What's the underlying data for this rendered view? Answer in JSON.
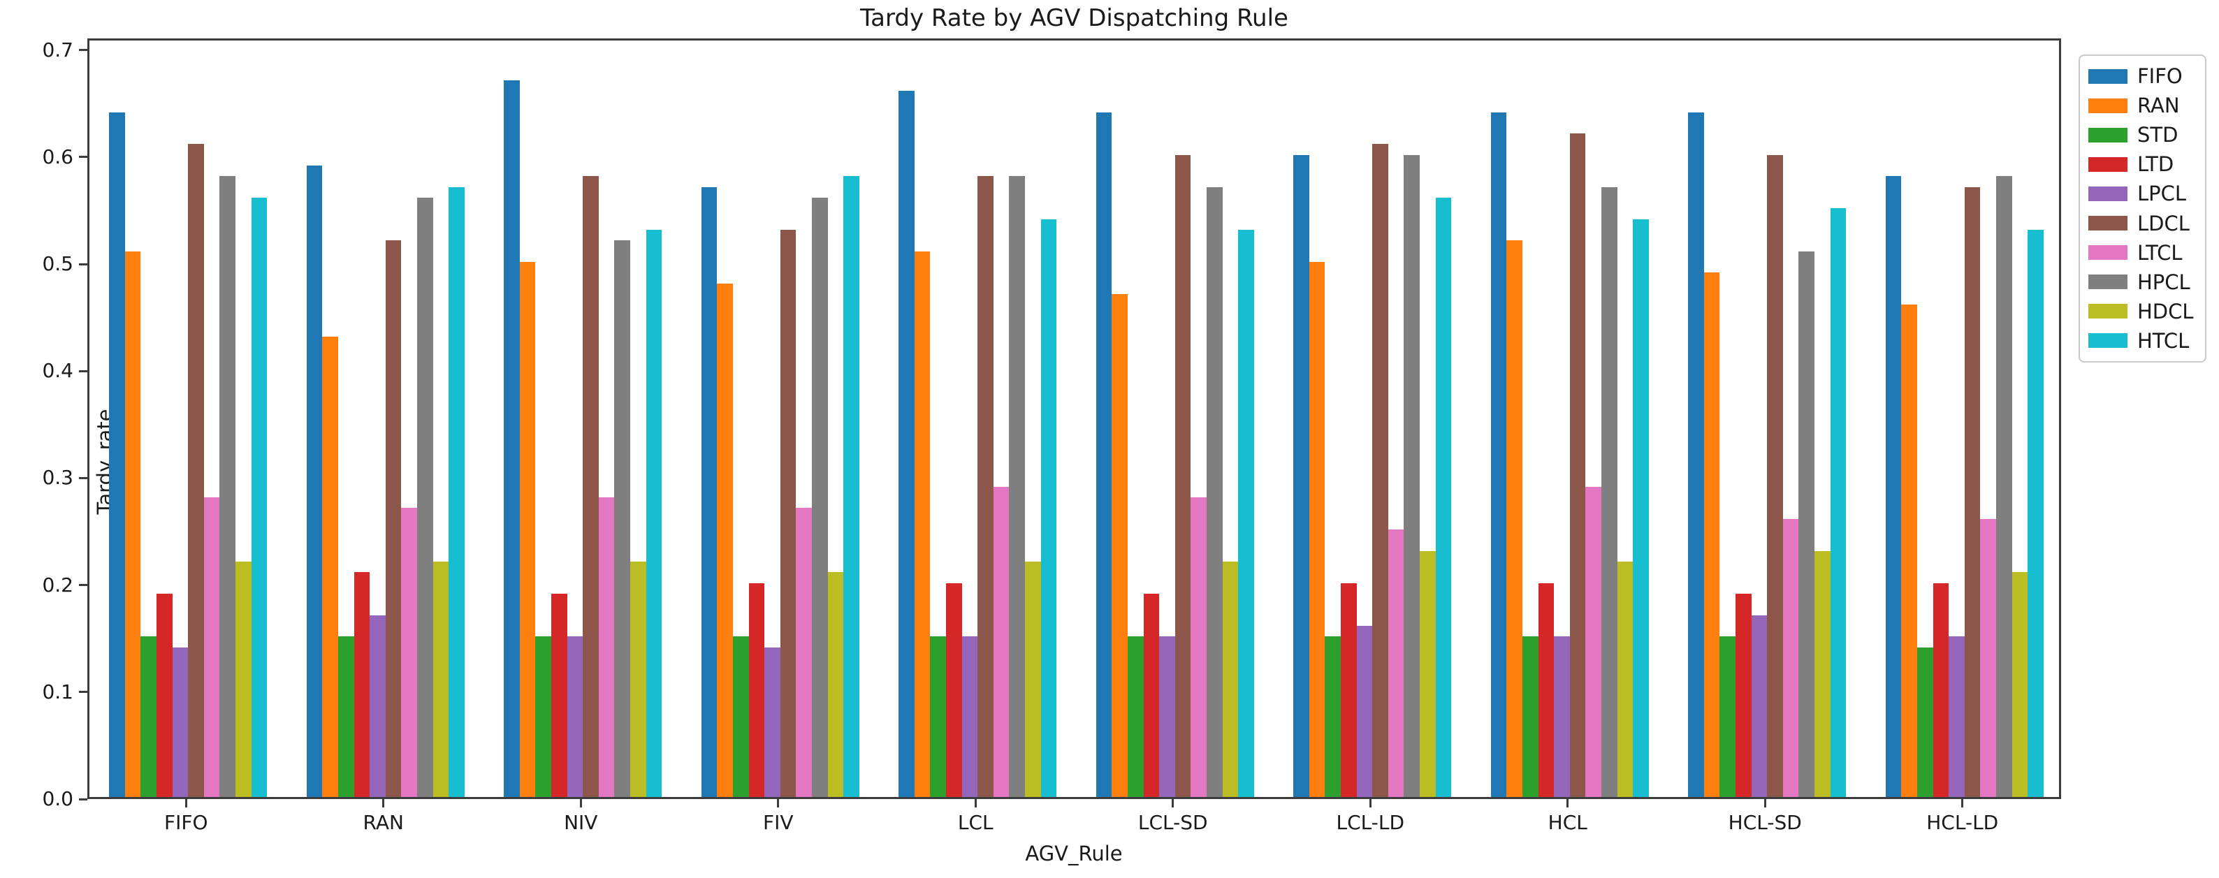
{
  "figure": {
    "title": "Tardy Rate by AGV Dispatching Rule",
    "xlabel": "AGV_Rule",
    "ylabel": "Tardy_rate"
  },
  "chart_data": {
    "type": "bar",
    "title": "Tardy Rate by AGV Dispatching Rule",
    "xlabel": "AGV_Rule",
    "ylabel": "Tardy_rate",
    "grid": false,
    "legend_position": "outside-right",
    "ylim": [
      0.0,
      0.7
    ],
    "yticks": [
      "0.0",
      "0.1",
      "0.2",
      "0.3",
      "0.4",
      "0.5",
      "0.6",
      "0.7"
    ],
    "bar_group_width": 0.8,
    "categories": [
      "FIFO",
      "RAN",
      "NIV",
      "FIV",
      "LCL",
      "LCL-SD",
      "LCL-LD",
      "HCL",
      "HCL-SD",
      "HCL-LD"
    ],
    "series": [
      {
        "name": "FIFO",
        "color": "#1f77b4",
        "values": [
          0.64,
          0.59,
          0.67,
          0.57,
          0.66,
          0.64,
          0.6,
          0.64,
          0.64,
          0.58
        ]
      },
      {
        "name": "RAN",
        "color": "#ff7f0e",
        "values": [
          0.51,
          0.43,
          0.5,
          0.48,
          0.51,
          0.47,
          0.5,
          0.52,
          0.49,
          0.46
        ]
      },
      {
        "name": "STD",
        "color": "#2ca02c",
        "values": [
          0.15,
          0.15,
          0.15,
          0.15,
          0.15,
          0.15,
          0.15,
          0.15,
          0.15,
          0.14
        ]
      },
      {
        "name": "LTD",
        "color": "#d62728",
        "values": [
          0.19,
          0.21,
          0.19,
          0.2,
          0.2,
          0.19,
          0.2,
          0.2,
          0.19,
          0.2
        ]
      },
      {
        "name": "LPCL",
        "color": "#9467bd",
        "values": [
          0.14,
          0.17,
          0.15,
          0.14,
          0.15,
          0.15,
          0.16,
          0.15,
          0.17,
          0.15
        ]
      },
      {
        "name": "LDCL",
        "color": "#8c564b",
        "values": [
          0.61,
          0.52,
          0.58,
          0.53,
          0.58,
          0.6,
          0.61,
          0.62,
          0.6,
          0.57
        ]
      },
      {
        "name": "LTCL",
        "color": "#e377c2",
        "values": [
          0.28,
          0.27,
          0.28,
          0.27,
          0.29,
          0.28,
          0.25,
          0.29,
          0.26,
          0.26
        ]
      },
      {
        "name": "HPCL",
        "color": "#7f7f7f",
        "values": [
          0.58,
          0.56,
          0.52,
          0.56,
          0.58,
          0.57,
          0.6,
          0.57,
          0.51,
          0.58
        ]
      },
      {
        "name": "HDCL",
        "color": "#bcbd22",
        "values": [
          0.22,
          0.22,
          0.22,
          0.21,
          0.22,
          0.22,
          0.23,
          0.22,
          0.23,
          0.21
        ]
      },
      {
        "name": "HTCL",
        "color": "#17becf",
        "values": [
          0.56,
          0.57,
          0.53,
          0.58,
          0.54,
          0.53,
          0.56,
          0.54,
          0.55,
          0.53
        ]
      }
    ]
  }
}
